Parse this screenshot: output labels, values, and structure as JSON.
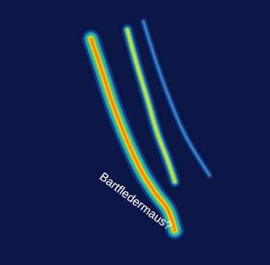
{
  "chart_data": {
    "type": "spectrogram",
    "annotation": "Bartfledermaus?",
    "tick_labels": false,
    "xlim": [
      0,
      100
    ],
    "ylim": [
      0,
      100
    ],
    "series": [
      {
        "color": "#3a8fd8",
        "x": [
          53.0,
          60.0,
          68.0,
          77.5
        ],
        "values": [
          92.0,
          70.0,
          50.0,
          34.0
        ]
      },
      {
        "color": "#c8e03a",
        "x": [
          47.0,
          50.4,
          54.3,
          58.1,
          62.0,
          64.6
        ],
        "values": [
          88.9,
          76.3,
          63.2,
          50.0,
          39.5,
          31.6
        ]
      },
      {
        "color": "#f7d21a",
        "x": [
          33.6,
          37.5,
          41.3,
          45.2,
          49.1,
          53.0,
          58.1,
          62.0,
          64.6
        ],
        "values": [
          85.5,
          73.7,
          61.8,
          51.3,
          42.1,
          34.2,
          26.3,
          21.1,
          13.2
        ]
      }
    ]
  }
}
